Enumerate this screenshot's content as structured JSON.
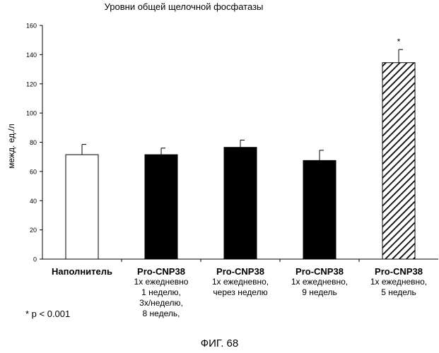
{
  "chart_data": {
    "type": "bar",
    "title": "Уровни общей щелочной фосфатазы",
    "ylabel": "межд. ед./л",
    "xlabel": "",
    "ylim": [
      0,
      160
    ],
    "yticks": [
      "0",
      "20",
      "40",
      "60",
      "80",
      "100",
      "120",
      "140",
      "160"
    ],
    "grid": false,
    "categories": [
      {
        "main": "Наполнитель",
        "sub": []
      },
      {
        "main": "Pro-CNP38",
        "sub": [
          "1x ежедневно",
          "1 неделю,",
          "3x/неделю,",
          "8 недель,"
        ]
      },
      {
        "main": "Pro-CNP38",
        "sub": [
          "1x ежедневно,",
          "через неделю"
        ]
      },
      {
        "main": "Pro-CNP38",
        "sub": [
          "1x ежедневно,",
          "9 недель"
        ]
      },
      {
        "main": "Pro-CNP38",
        "sub": [
          "1x ежедневно,",
          "5 недель"
        ]
      }
    ],
    "values": [
      71.5,
      71.5,
      76.5,
      67.5,
      134.5
    ],
    "errors": [
      7,
      4.5,
      5,
      7,
      9
    ],
    "fills": [
      "white",
      "black",
      "black",
      "black",
      "hatched"
    ],
    "significance": [
      "",
      "",
      "",
      "",
      "*"
    ],
    "footnote": "* p < 0.001"
  },
  "figure_label": "ФИГ. 68",
  "colors": {
    "bar_dark": "#000000",
    "bar_light": "#ffffff",
    "axis": "#000000"
  }
}
